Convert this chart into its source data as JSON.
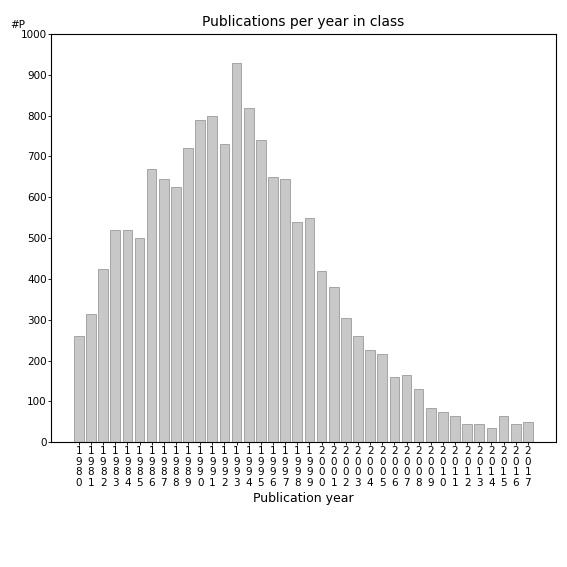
{
  "title": "Publications per year in class",
  "xlabel": "Publication year",
  "ylabel": "#P",
  "years": [
    "1980",
    "1981",
    "1982",
    "1983",
    "1984",
    "1985",
    "1986",
    "1987",
    "1988",
    "1989",
    "1990",
    "1991",
    "1992",
    "1993",
    "1994",
    "1995",
    "1996",
    "1997",
    "1998",
    "1999",
    "2000",
    "2001",
    "2002",
    "2003",
    "2004",
    "2005",
    "2006",
    "2007",
    "2008",
    "2009",
    "2010",
    "2011",
    "2012",
    "2013",
    "2014",
    "2015",
    "2016",
    "2017"
  ],
  "values": [
    260,
    315,
    425,
    520,
    520,
    500,
    670,
    645,
    625,
    720,
    790,
    800,
    730,
    930,
    820,
    740,
    650,
    645,
    540,
    550,
    420,
    380,
    305,
    260,
    225,
    215,
    160,
    165,
    130,
    85,
    75,
    65,
    45,
    45,
    35,
    65,
    45,
    50
  ],
  "bar_color": "#c8c8c8",
  "bar_edgecolor": "#777777",
  "ylim": [
    0,
    1000
  ],
  "yticks": [
    0,
    100,
    200,
    300,
    400,
    500,
    600,
    700,
    800,
    900,
    1000
  ],
  "background_color": "#ffffff",
  "title_fontsize": 10,
  "xlabel_fontsize": 9,
  "tick_fontsize": 7.5
}
